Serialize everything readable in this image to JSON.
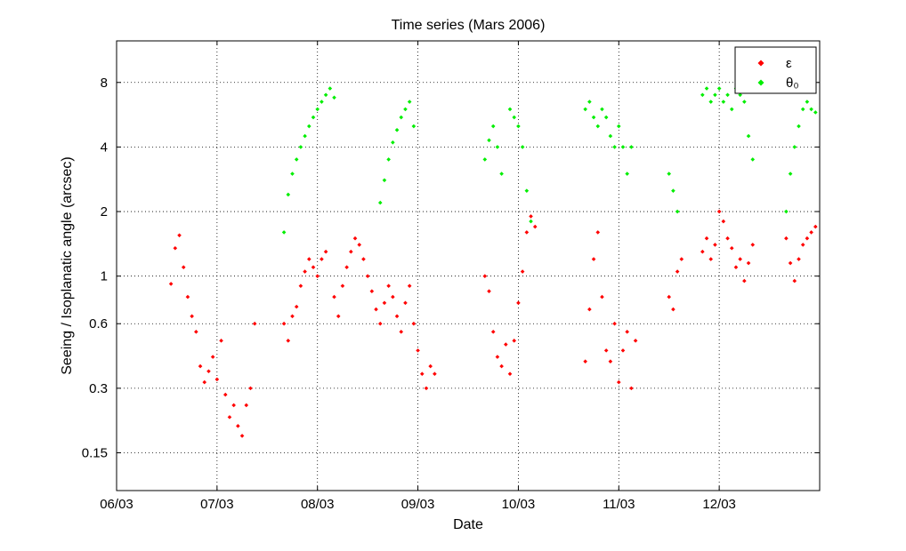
{
  "chart_data": {
    "type": "scatter",
    "title": "Time series (Mars 2006)",
    "xlabel": "Date",
    "ylabel": "Seeing / Isoplanatic angle (arcsec)",
    "x_type": "date",
    "x_range": [
      "2006-03-06",
      "2006-03-13"
    ],
    "y_scale": "log",
    "y_range": [
      0.1,
      12.5
    ],
    "x_ticks": [
      {
        "date": "2006-03-06",
        "label": "06/03"
      },
      {
        "date": "2006-03-07",
        "label": "07/03"
      },
      {
        "date": "2006-03-08",
        "label": "08/03"
      },
      {
        "date": "2006-03-09",
        "label": "09/03"
      },
      {
        "date": "2006-03-10",
        "label": "10/03"
      },
      {
        "date": "2006-03-11",
        "label": "11/03"
      },
      {
        "date": "2006-03-12",
        "label": "12/03"
      }
    ],
    "y_ticks": [
      {
        "value": 0.15,
        "label": "0.15"
      },
      {
        "value": 0.3,
        "label": "0.3"
      },
      {
        "value": 0.6,
        "label": "0.6"
      },
      {
        "value": 1,
        "label": "1"
      },
      {
        "value": 2,
        "label": "2"
      },
      {
        "value": 4,
        "label": "4"
      },
      {
        "value": 8,
        "label": "8"
      }
    ],
    "grid": true,
    "legend_position": "top-right",
    "series": [
      {
        "name": "ε",
        "color": "#ff0000",
        "points": [
          [
            "2006-03-06 13:00",
            0.92
          ],
          [
            "2006-03-06 14:00",
            1.35
          ],
          [
            "2006-03-06 15:00",
            1.55
          ],
          [
            "2006-03-06 16:00",
            1.1
          ],
          [
            "2006-03-06 17:00",
            0.8
          ],
          [
            "2006-03-06 18:00",
            0.65
          ],
          [
            "2006-03-06 19:00",
            0.55
          ],
          [
            "2006-03-06 20:00",
            0.38
          ],
          [
            "2006-03-06 21:00",
            0.32
          ],
          [
            "2006-03-06 22:00",
            0.36
          ],
          [
            "2006-03-06 23:00",
            0.42
          ],
          [
            "2006-03-07 00:00",
            0.33
          ],
          [
            "2006-03-07 01:00",
            0.5
          ],
          [
            "2006-03-07 02:00",
            0.28
          ],
          [
            "2006-03-07 03:00",
            0.22
          ],
          [
            "2006-03-07 04:00",
            0.25
          ],
          [
            "2006-03-07 05:00",
            0.2
          ],
          [
            "2006-03-07 06:00",
            0.18
          ],
          [
            "2006-03-07 07:00",
            0.25
          ],
          [
            "2006-03-07 08:00",
            0.3
          ],
          [
            "2006-03-07 09:00",
            0.6
          ],
          [
            "2006-03-07 16:00",
            0.6
          ],
          [
            "2006-03-07 17:00",
            0.5
          ],
          [
            "2006-03-07 18:00",
            0.65
          ],
          [
            "2006-03-07 19:00",
            0.72
          ],
          [
            "2006-03-07 20:00",
            0.9
          ],
          [
            "2006-03-07 21:00",
            1.05
          ],
          [
            "2006-03-07 22:00",
            1.2
          ],
          [
            "2006-03-07 23:00",
            1.1
          ],
          [
            "2006-03-08 00:00",
            1.0
          ],
          [
            "2006-03-08 01:00",
            1.2
          ],
          [
            "2006-03-08 02:00",
            1.3
          ],
          [
            "2006-03-08 04:00",
            0.8
          ],
          [
            "2006-03-08 05:00",
            0.65
          ],
          [
            "2006-03-08 06:00",
            0.9
          ],
          [
            "2006-03-08 07:00",
            1.1
          ],
          [
            "2006-03-08 08:00",
            1.3
          ],
          [
            "2006-03-08 09:00",
            1.5
          ],
          [
            "2006-03-08 10:00",
            1.4
          ],
          [
            "2006-03-08 11:00",
            1.2
          ],
          [
            "2006-03-08 12:00",
            1.0
          ],
          [
            "2006-03-08 13:00",
            0.85
          ],
          [
            "2006-03-08 14:00",
            0.7
          ],
          [
            "2006-03-08 15:00",
            0.6
          ],
          [
            "2006-03-08 16:00",
            0.75
          ],
          [
            "2006-03-08 17:00",
            0.9
          ],
          [
            "2006-03-08 18:00",
            0.8
          ],
          [
            "2006-03-08 19:00",
            0.65
          ],
          [
            "2006-03-08 20:00",
            0.55
          ],
          [
            "2006-03-08 21:00",
            0.75
          ],
          [
            "2006-03-08 22:00",
            0.9
          ],
          [
            "2006-03-08 23:00",
            0.6
          ],
          [
            "2006-03-09 00:00",
            0.45
          ],
          [
            "2006-03-09 01:00",
            0.35
          ],
          [
            "2006-03-09 02:00",
            0.3
          ],
          [
            "2006-03-09 03:00",
            0.38
          ],
          [
            "2006-03-09 04:00",
            0.35
          ],
          [
            "2006-03-09 16:00",
            1.0
          ],
          [
            "2006-03-09 17:00",
            0.85
          ],
          [
            "2006-03-09 18:00",
            0.55
          ],
          [
            "2006-03-09 19:00",
            0.42
          ],
          [
            "2006-03-09 20:00",
            0.38
          ],
          [
            "2006-03-09 21:00",
            0.48
          ],
          [
            "2006-03-09 22:00",
            0.35
          ],
          [
            "2006-03-09 23:00",
            0.5
          ],
          [
            "2006-03-10 00:00",
            0.75
          ],
          [
            "2006-03-10 01:00",
            1.05
          ],
          [
            "2006-03-10 02:00",
            1.6
          ],
          [
            "2006-03-10 03:00",
            1.9
          ],
          [
            "2006-03-10 04:00",
            1.7
          ],
          [
            "2006-03-10 16:00",
            0.4
          ],
          [
            "2006-03-10 17:00",
            0.7
          ],
          [
            "2006-03-10 18:00",
            1.2
          ],
          [
            "2006-03-10 19:00",
            1.6
          ],
          [
            "2006-03-10 20:00",
            0.8
          ],
          [
            "2006-03-10 21:00",
            0.45
          ],
          [
            "2006-03-10 22:00",
            0.4
          ],
          [
            "2006-03-10 23:00",
            0.6
          ],
          [
            "2006-03-11 00:00",
            0.32
          ],
          [
            "2006-03-11 01:00",
            0.45
          ],
          [
            "2006-03-11 02:00",
            0.55
          ],
          [
            "2006-03-11 03:00",
            0.3
          ],
          [
            "2006-03-11 04:00",
            0.5
          ],
          [
            "2006-03-11 12:00",
            0.8
          ],
          [
            "2006-03-11 13:00",
            0.7
          ],
          [
            "2006-03-11 14:00",
            1.05
          ],
          [
            "2006-03-11 15:00",
            1.2
          ],
          [
            "2006-03-11 20:00",
            1.3
          ],
          [
            "2006-03-11 21:00",
            1.5
          ],
          [
            "2006-03-11 22:00",
            1.2
          ],
          [
            "2006-03-11 23:00",
            1.4
          ],
          [
            "2006-03-12 00:00",
            2.0
          ],
          [
            "2006-03-12 01:00",
            1.8
          ],
          [
            "2006-03-12 02:00",
            1.5
          ],
          [
            "2006-03-12 03:00",
            1.35
          ],
          [
            "2006-03-12 04:00",
            1.1
          ],
          [
            "2006-03-12 05:00",
            1.2
          ],
          [
            "2006-03-12 06:00",
            0.95
          ],
          [
            "2006-03-12 07:00",
            1.15
          ],
          [
            "2006-03-12 08:00",
            1.4
          ],
          [
            "2006-03-12 16:00",
            1.5
          ],
          [
            "2006-03-12 17:00",
            1.15
          ],
          [
            "2006-03-12 18:00",
            0.95
          ],
          [
            "2006-03-12 19:00",
            1.2
          ],
          [
            "2006-03-12 20:00",
            1.4
          ],
          [
            "2006-03-12 21:00",
            1.5
          ],
          [
            "2006-03-12 22:00",
            1.6
          ],
          [
            "2006-03-12 23:00",
            1.7
          ]
        ]
      },
      {
        "name": "θ₀",
        "color": "#00ee00",
        "points": [
          [
            "2006-03-07 16:00",
            1.6
          ],
          [
            "2006-03-07 17:00",
            2.4
          ],
          [
            "2006-03-07 18:00",
            3.0
          ],
          [
            "2006-03-07 19:00",
            3.5
          ],
          [
            "2006-03-07 20:00",
            4.0
          ],
          [
            "2006-03-07 21:00",
            4.5
          ],
          [
            "2006-03-07 22:00",
            5.0
          ],
          [
            "2006-03-07 23:00",
            5.5
          ],
          [
            "2006-03-08 00:00",
            6.0
          ],
          [
            "2006-03-08 01:00",
            6.5
          ],
          [
            "2006-03-08 02:00",
            7.0
          ],
          [
            "2006-03-08 03:00",
            7.5
          ],
          [
            "2006-03-08 04:00",
            6.8
          ],
          [
            "2006-03-08 15:00",
            2.2
          ],
          [
            "2006-03-08 16:00",
            2.8
          ],
          [
            "2006-03-08 17:00",
            3.5
          ],
          [
            "2006-03-08 18:00",
            4.2
          ],
          [
            "2006-03-08 19:00",
            4.8
          ],
          [
            "2006-03-08 20:00",
            5.5
          ],
          [
            "2006-03-08 21:00",
            6.0
          ],
          [
            "2006-03-08 22:00",
            6.5
          ],
          [
            "2006-03-08 23:00",
            5.0
          ],
          [
            "2006-03-09 16:00",
            3.5
          ],
          [
            "2006-03-09 17:00",
            4.3
          ],
          [
            "2006-03-09 18:00",
            5.0
          ],
          [
            "2006-03-09 19:00",
            4.0
          ],
          [
            "2006-03-09 20:00",
            3.0
          ],
          [
            "2006-03-09 22:00",
            6.0
          ],
          [
            "2006-03-09 23:00",
            5.5
          ],
          [
            "2006-03-10 00:00",
            5.0
          ],
          [
            "2006-03-10 01:00",
            4.0
          ],
          [
            "2006-03-10 02:00",
            2.5
          ],
          [
            "2006-03-10 03:00",
            1.8
          ],
          [
            "2006-03-10 16:00",
            6.0
          ],
          [
            "2006-03-10 17:00",
            6.5
          ],
          [
            "2006-03-10 18:00",
            5.5
          ],
          [
            "2006-03-10 19:00",
            5.0
          ],
          [
            "2006-03-10 20:00",
            6.0
          ],
          [
            "2006-03-10 21:00",
            5.5
          ],
          [
            "2006-03-10 22:00",
            4.5
          ],
          [
            "2006-03-10 23:00",
            4.0
          ],
          [
            "2006-03-11 00:00",
            5.0
          ],
          [
            "2006-03-11 01:00",
            4.0
          ],
          [
            "2006-03-11 02:00",
            3.0
          ],
          [
            "2006-03-11 03:00",
            4.0
          ],
          [
            "2006-03-11 12:00",
            3.0
          ],
          [
            "2006-03-11 13:00",
            2.5
          ],
          [
            "2006-03-11 14:00",
            2.0
          ],
          [
            "2006-03-11 20:00",
            7.0
          ],
          [
            "2006-03-11 21:00",
            7.5
          ],
          [
            "2006-03-11 22:00",
            6.5
          ],
          [
            "2006-03-11 23:00",
            7.0
          ],
          [
            "2006-03-12 00:00",
            7.5
          ],
          [
            "2006-03-12 01:00",
            6.5
          ],
          [
            "2006-03-12 02:00",
            7.0
          ],
          [
            "2006-03-12 03:00",
            6.0
          ],
          [
            "2006-03-12 04:00",
            7.5
          ],
          [
            "2006-03-12 05:00",
            7.0
          ],
          [
            "2006-03-12 06:00",
            6.5
          ],
          [
            "2006-03-12 07:00",
            4.5
          ],
          [
            "2006-03-12 08:00",
            3.5
          ],
          [
            "2006-03-12 16:00",
            2.0
          ],
          [
            "2006-03-12 17:00",
            3.0
          ],
          [
            "2006-03-12 18:00",
            4.0
          ],
          [
            "2006-03-12 19:00",
            5.0
          ],
          [
            "2006-03-12 20:00",
            6.0
          ],
          [
            "2006-03-12 21:00",
            6.5
          ],
          [
            "2006-03-12 22:00",
            6.0
          ],
          [
            "2006-03-12 23:00",
            5.8
          ]
        ]
      }
    ]
  }
}
